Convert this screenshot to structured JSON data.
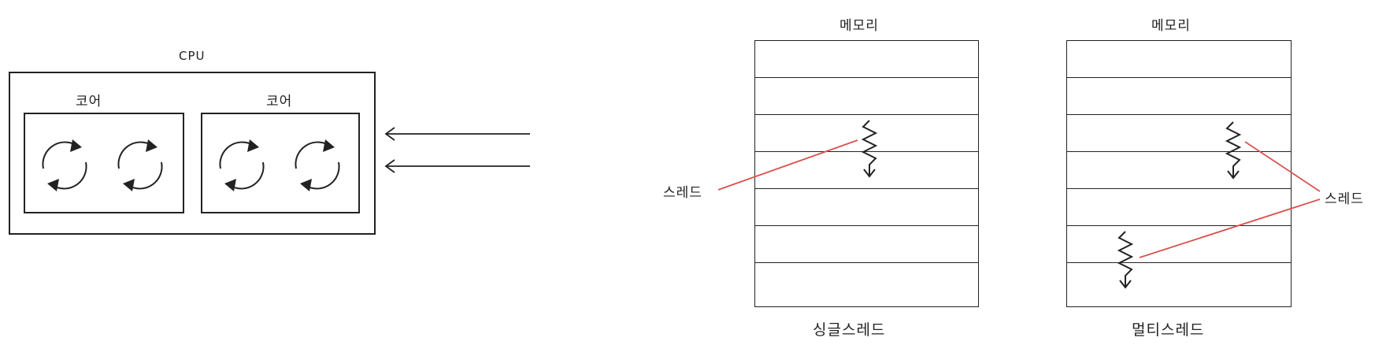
{
  "cpu": {
    "label": "CPU",
    "cores": [
      {
        "label": "코어"
      },
      {
        "label": "코어"
      }
    ]
  },
  "single_thread": {
    "memory_label": "메모리",
    "caption": "싱글스레드",
    "thread_label": "스레드"
  },
  "multi_thread": {
    "memory_label": "메모리",
    "caption": "멀티스레드",
    "thread_label": "스레드"
  },
  "colors": {
    "stroke": "#222222",
    "pointer": "#d9534f"
  },
  "icons": {
    "core_cycle": "cycle-arrows-icon",
    "incoming_arrow": "left-arrow-icon",
    "thread": "zigzag-down-arrow-icon"
  }
}
